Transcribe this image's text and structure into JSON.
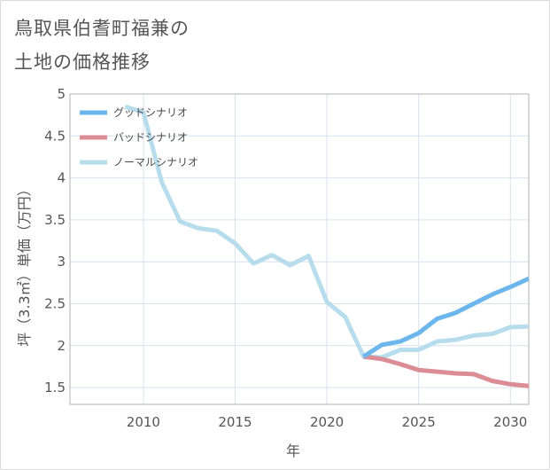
{
  "title_line1": "鳥取県伯耆町福兼の",
  "title_line2": "土地の価格推移",
  "colors": {
    "good": "#6bb6ec",
    "bad": "#dc8c94",
    "normal": "#b7dcec",
    "grid": "#d6e2ec",
    "axis": "#b0b0b0"
  },
  "chart_data": {
    "type": "line",
    "xlabel": "年",
    "ylabel": "坪（3.3㎡）単価（万円）",
    "xlim": [
      2006,
      2031
    ],
    "ylim": [
      1.3,
      5
    ],
    "xticks": [
      2010,
      2015,
      2020,
      2025,
      2030
    ],
    "yticks": [
      1.5,
      2,
      2.5,
      3,
      3.5,
      4,
      4.5,
      5
    ],
    "ytick_labels": [
      "1.5",
      "2",
      "2.5",
      "3",
      "3.5",
      "4",
      "4.5",
      "5"
    ],
    "grid": true,
    "legend_position": "top-left",
    "series": [
      {
        "name": "グッドシナリオ",
        "color_key": "good",
        "x": [
          2022,
          2023,
          2024,
          2025,
          2026,
          2027,
          2028,
          2029,
          2030,
          2031
        ],
        "y": [
          1.87,
          2.01,
          2.05,
          2.15,
          2.32,
          2.39,
          2.5,
          2.61,
          2.7,
          2.8
        ]
      },
      {
        "name": "バッドシナリオ",
        "color_key": "bad",
        "x": [
          2022,
          2023,
          2024,
          2025,
          2026,
          2027,
          2028,
          2029,
          2030,
          2031
        ],
        "y": [
          1.87,
          1.84,
          1.78,
          1.71,
          1.69,
          1.67,
          1.66,
          1.58,
          1.54,
          1.52
        ]
      },
      {
        "name": "ノーマルシナリオ",
        "color_key": "normal",
        "x": [
          2009,
          2010,
          2011,
          2012,
          2013,
          2014,
          2015,
          2016,
          2017,
          2018,
          2019,
          2020,
          2021,
          2022,
          2023,
          2024,
          2025,
          2026,
          2027,
          2028,
          2029,
          2030,
          2031
        ],
        "y": [
          4.85,
          4.78,
          3.95,
          3.48,
          3.4,
          3.37,
          3.22,
          2.98,
          3.08,
          2.96,
          3.07,
          2.52,
          2.34,
          1.87,
          1.86,
          1.95,
          1.95,
          2.05,
          2.07,
          2.12,
          2.14,
          2.22,
          2.23
        ]
      }
    ]
  }
}
